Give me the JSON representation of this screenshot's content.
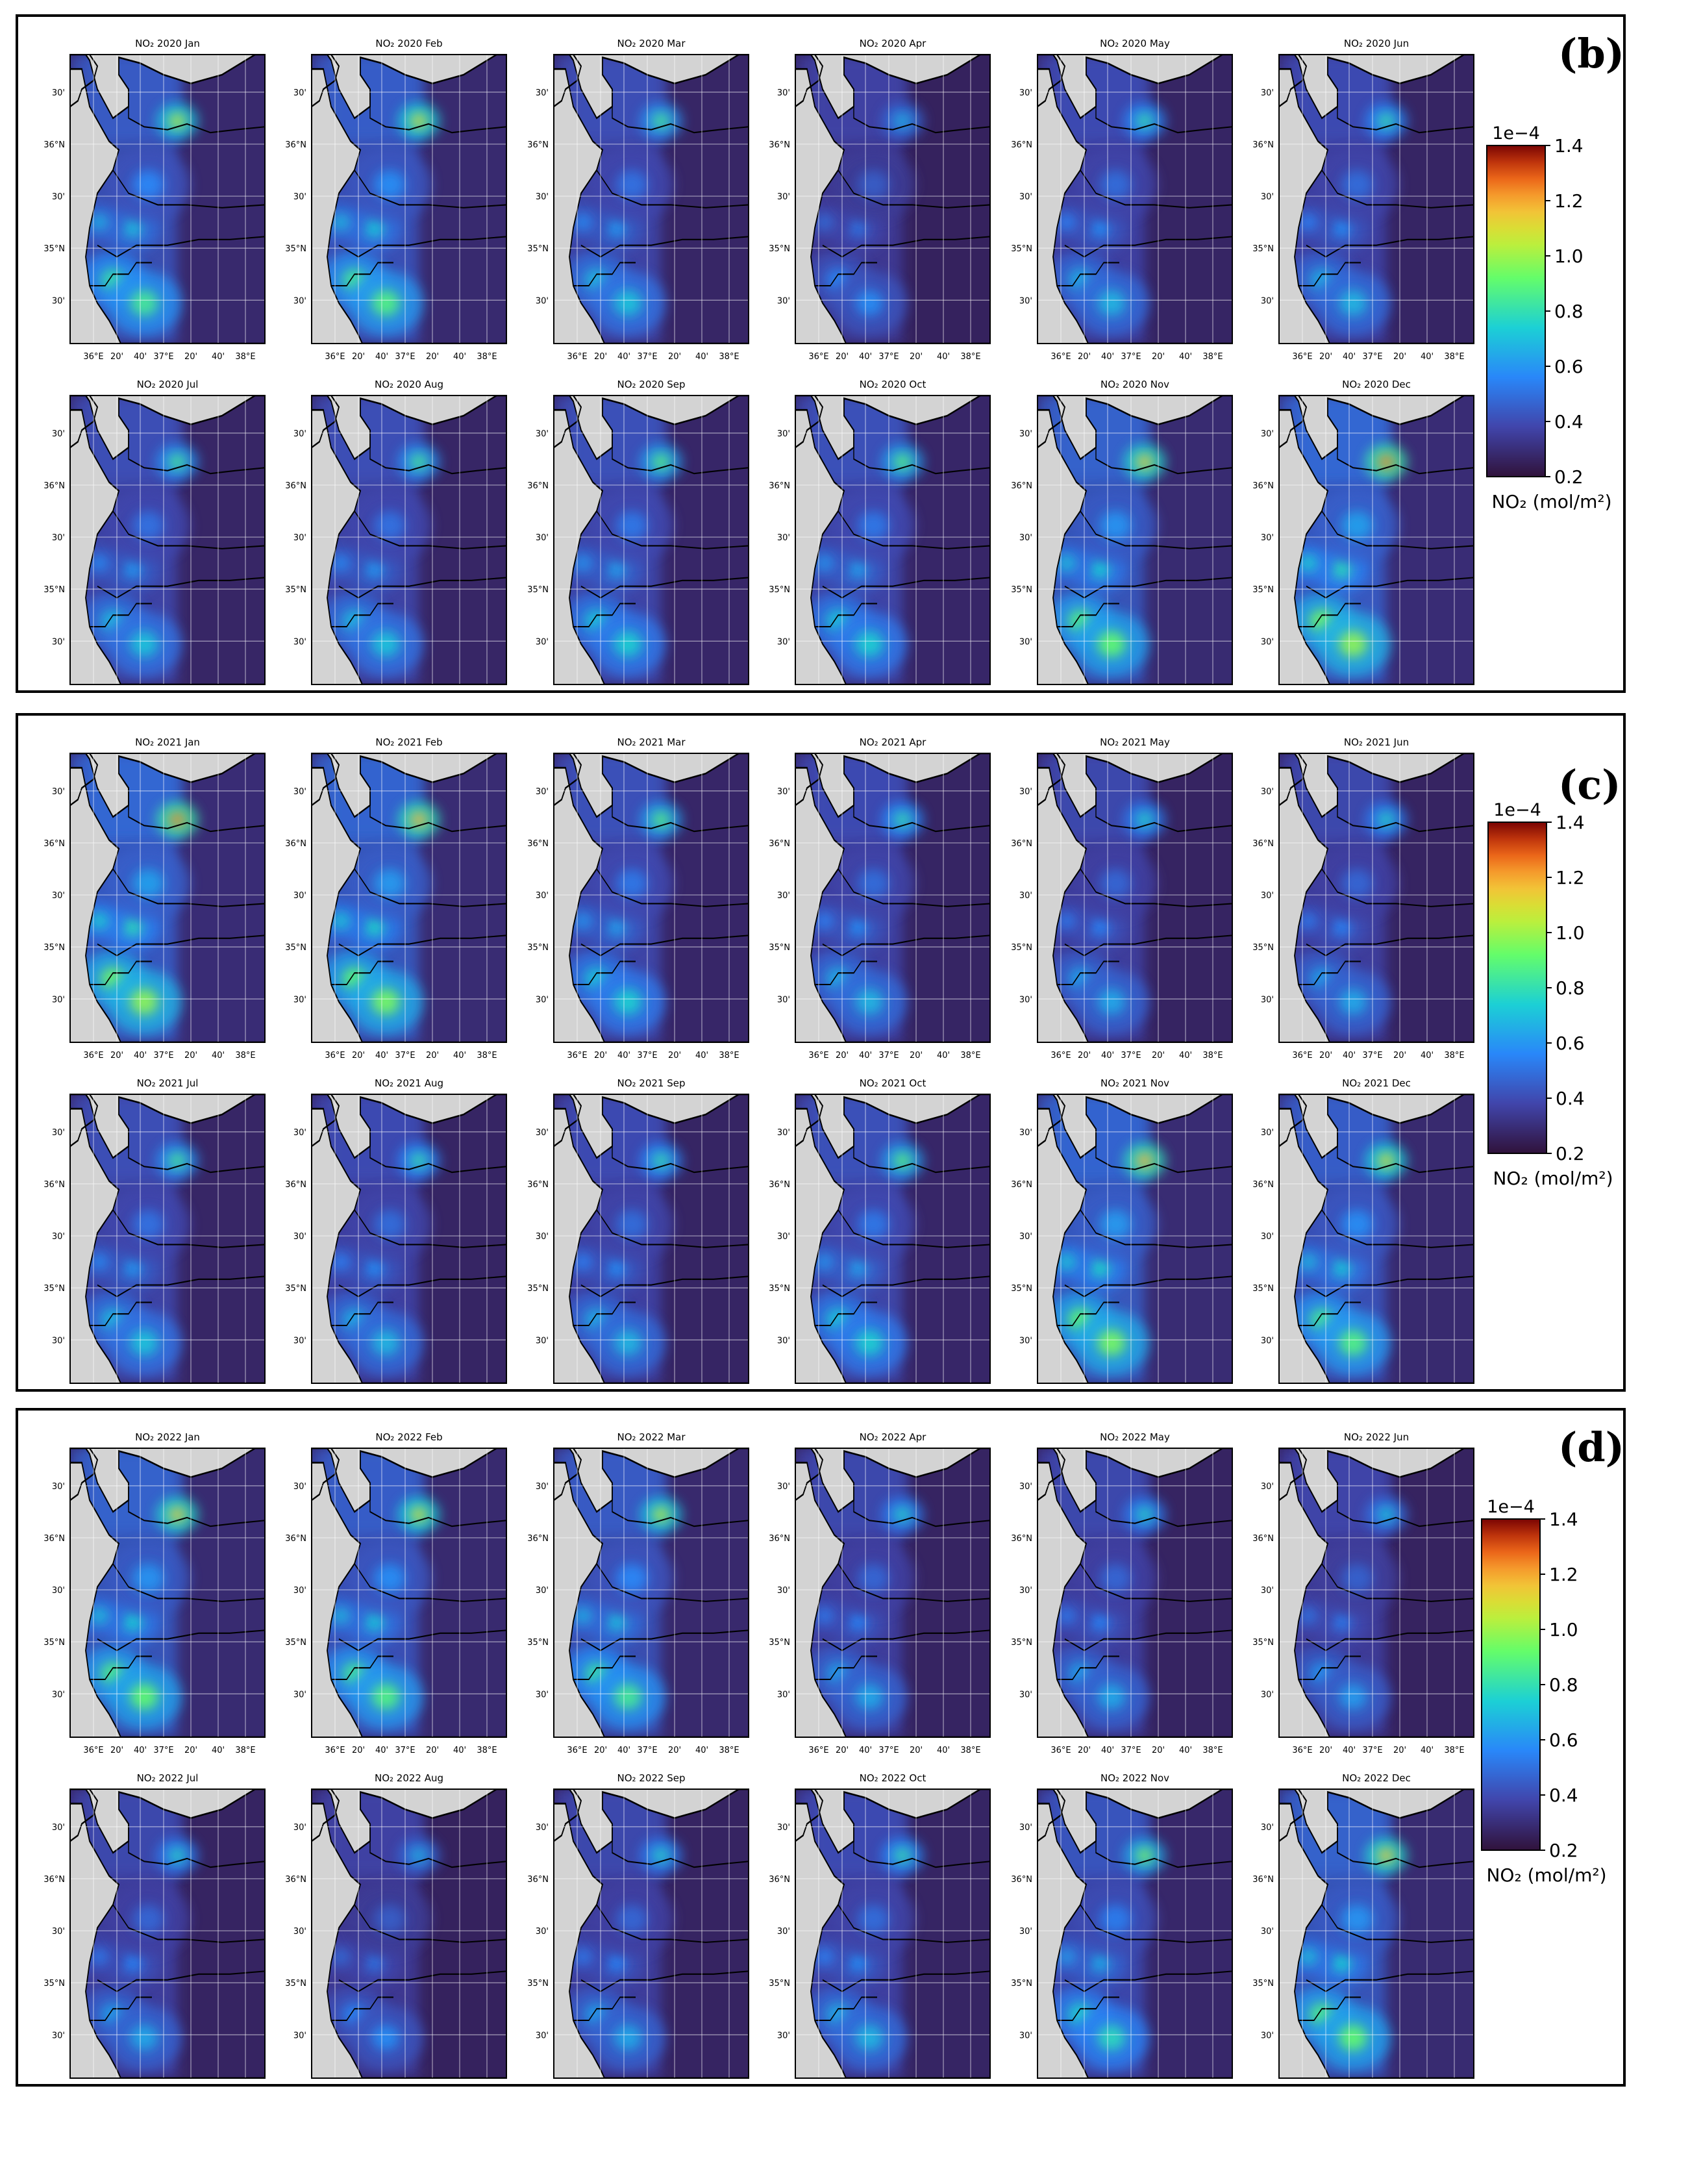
{
  "panels": [
    {
      "label": "(b)",
      "map_titles": [
        "NO₂ 2020 Jan",
        "NO₂ 2020 Feb",
        "NO₂ 2020 Mar",
        "NO₂ 2020 Apr",
        "NO₂ 2020 May",
        "NO₂ 2020 Jun",
        "NO₂ 2020 Jul",
        "NO₂ 2020 Aug",
        "NO₂ 2020 Sep",
        "NO₂ 2020 Oct",
        "NO₂ 2020 Nov",
        "NO₂ 2020 Dec"
      ],
      "intensity": [
        0.75,
        0.8,
        0.55,
        0.35,
        0.5,
        0.5,
        0.55,
        0.55,
        0.6,
        0.6,
        0.85,
        0.95
      ]
    },
    {
      "label": "(c)",
      "map_titles": [
        "NO₂ 2021 Jan",
        "NO₂ 2021 Feb",
        "NO₂ 2021 Mar",
        "NO₂ 2021 Apr",
        "NO₂ 2021 May",
        "NO₂ 2021 Jun",
        "NO₂ 2021 Jul",
        "NO₂ 2021 Aug",
        "NO₂ 2021 Sep",
        "NO₂ 2021 Oct",
        "NO₂ 2021 Nov",
        "NO₂ 2021 Dec"
      ],
      "intensity": [
        0.95,
        0.9,
        0.6,
        0.5,
        0.45,
        0.45,
        0.55,
        0.5,
        0.5,
        0.6,
        0.9,
        0.8
      ]
    },
    {
      "label": "(d)",
      "map_titles": [
        "NO₂ 2022 Jan",
        "NO₂ 2022 Feb",
        "NO₂ 2022 Mar",
        "NO₂ 2022 Apr",
        "NO₂ 2022 May",
        "NO₂ 2022 Jun",
        "NO₂ 2022 Jul",
        "NO₂ 2022 Aug",
        "NO₂ 2022 Sep",
        "NO₂ 2022 Oct",
        "NO₂ 2022 Nov",
        "NO₂ 2022 Dec"
      ],
      "intensity": [
        0.85,
        0.8,
        0.75,
        0.45,
        0.45,
        0.4,
        0.45,
        0.35,
        0.45,
        0.5,
        0.65,
        0.85
      ]
    }
  ],
  "axes": {
    "lat_ticks": [
      "30'",
      "36°N",
      "30'",
      "35°N",
      "30'"
    ],
    "lon_ticks": [
      "36°E",
      "20'",
      "40'",
      "37°E",
      "20'",
      "40'",
      "38°E"
    ]
  },
  "colorbar": {
    "exponent": "1e−4",
    "ticks": [
      "1.4",
      "1.2",
      "1.0",
      "0.8",
      "0.6",
      "0.4",
      "0.2"
    ],
    "label": "NO₂ (mol/m²)",
    "colormap": "turbo",
    "range": [
      0.2,
      1.4
    ]
  }
}
